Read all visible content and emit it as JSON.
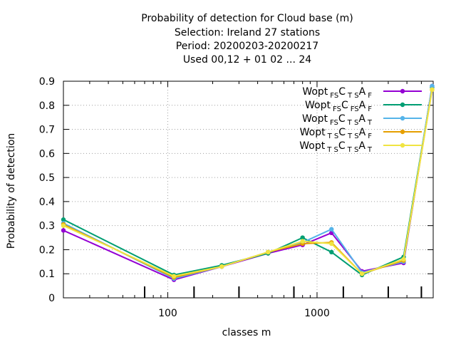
{
  "chart_data": {
    "type": "line",
    "title": [
      "Probability of detection  for Cloud base (m)",
      "Selection: Ireland     27 stations",
      "Period: 20200203-20200217",
      "Used  00,12  + 01 02 ... 24"
    ],
    "xlabel": "classes m",
    "ylabel": "Probability of detection",
    "x_scale": "log",
    "xlim": [
      20,
      6000
    ],
    "ylim": [
      0,
      0.9
    ],
    "x_ticks": [
      100,
      1000
    ],
    "y_ticks": [
      0,
      0.1,
      0.2,
      0.3,
      0.4,
      0.5,
      0.6,
      0.7,
      0.8,
      0.9
    ],
    "grid": true,
    "legend_position": "top-right",
    "x": [
      20,
      110,
      230,
      470,
      800,
      1250,
      2000,
      3800,
      5900
    ],
    "series": [
      {
        "name_parts": [
          [
            "Wopt",
            ""
          ],
          [
            "FS",
            "sub"
          ],
          [
            "C",
            ""
          ],
          [
            "T S",
            "sub"
          ],
          [
            "A",
            ""
          ],
          [
            "F",
            "sub"
          ]
        ],
        "color": "#9400d3",
        "values": [
          0.28,
          0.075,
          0.13,
          0.185,
          0.22,
          0.27,
          0.11,
          0.145,
          0.88
        ]
      },
      {
        "name_parts": [
          [
            "Wopt",
            ""
          ],
          [
            "FS",
            "sub"
          ],
          [
            "C",
            ""
          ],
          [
            "FS",
            "sub"
          ],
          [
            "A",
            ""
          ],
          [
            "F",
            "sub"
          ]
        ],
        "color": "#009e73",
        "values": [
          0.325,
          0.095,
          0.135,
          0.185,
          0.25,
          0.19,
          0.095,
          0.17,
          0.875
        ]
      },
      {
        "name_parts": [
          [
            "Wopt",
            ""
          ],
          [
            "FS",
            "sub"
          ],
          [
            "C",
            ""
          ],
          [
            "T S",
            "sub"
          ],
          [
            "A",
            ""
          ],
          [
            "T",
            "sub"
          ]
        ],
        "color": "#56b4e9",
        "values": [
          0.31,
          0.08,
          0.13,
          0.19,
          0.23,
          0.285,
          0.105,
          0.15,
          0.88
        ]
      },
      {
        "name_parts": [
          [
            "Wopt",
            ""
          ],
          [
            "T S",
            "sub"
          ],
          [
            "C",
            ""
          ],
          [
            "T S",
            "sub"
          ],
          [
            "A",
            ""
          ],
          [
            "F",
            "sub"
          ]
        ],
        "color": "#e69f00",
        "values": [
          0.305,
          0.085,
          0.13,
          0.19,
          0.225,
          0.23,
          0.1,
          0.155,
          0.865
        ]
      },
      {
        "name_parts": [
          [
            "Wopt",
            ""
          ],
          [
            "T S",
            "sub"
          ],
          [
            "C",
            ""
          ],
          [
            "T S",
            "sub"
          ],
          [
            "A",
            ""
          ],
          [
            "T",
            "sub"
          ]
        ],
        "color": "#f0e442",
        "values": [
          0.3,
          0.09,
          0.13,
          0.19,
          0.235,
          0.225,
          0.1,
          0.16,
          0.865
        ]
      }
    ]
  }
}
